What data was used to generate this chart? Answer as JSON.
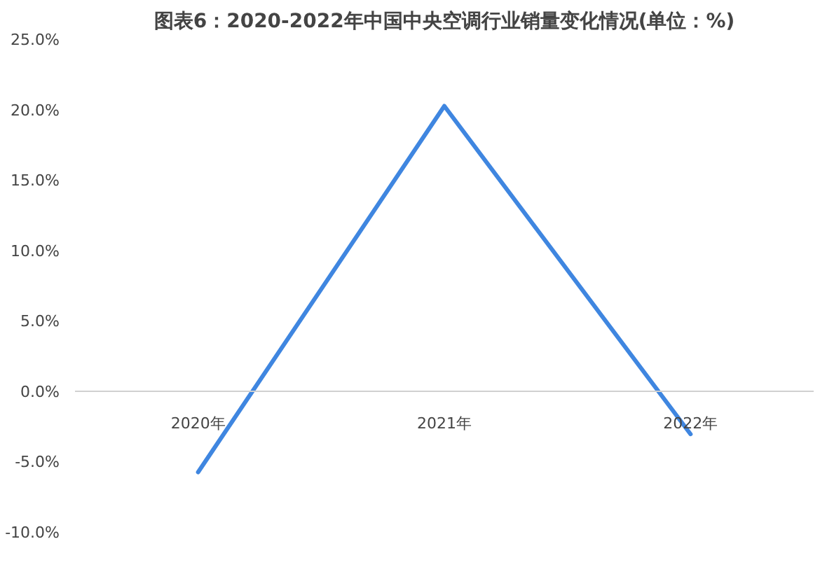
{
  "chart_data": {
    "type": "line",
    "title": "图表6：2020-2022年中国中央空调行业销量变化情况(单位：%)",
    "categories": [
      "2020年",
      "2021年",
      "2022年"
    ],
    "series": [
      {
        "color": "#3f86e0",
        "values": [
          -5.7,
          20.3,
          -3.0
        ]
      }
    ],
    "ylim": [
      -10,
      25
    ],
    "yticks": [
      {
        "value": -10,
        "label": "-10.0%"
      },
      {
        "value": -5,
        "label": "-5.0%"
      },
      {
        "value": 0,
        "label": "0.0%"
      },
      {
        "value": 5,
        "label": "5.0%"
      },
      {
        "value": 10,
        "label": "10.0%"
      },
      {
        "value": 15,
        "label": "15.0%"
      },
      {
        "value": 20,
        "label": "20.0%"
      },
      {
        "value": 25,
        "label": "25.0%"
      }
    ],
    "marker": "none",
    "line_style": "solid"
  }
}
